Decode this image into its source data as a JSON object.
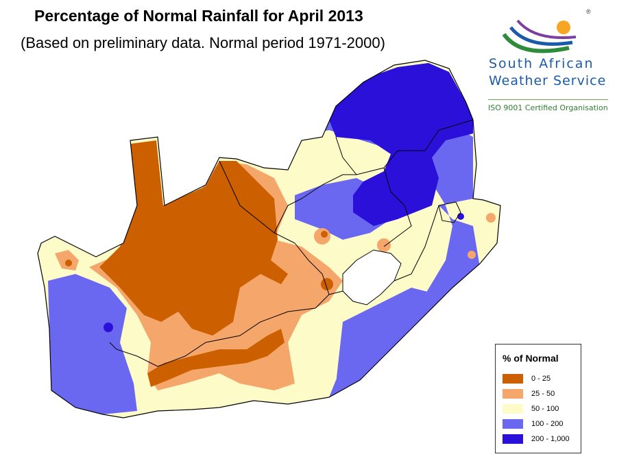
{
  "header": {
    "title": "Percentage of Normal Rainfall for April  2013",
    "subtitle": "(Based on preliminary data. Normal period 1971-2000)"
  },
  "logo": {
    "name_line1": "South  African",
    "name_line2": "Weather Service",
    "certification": "ISO 9001 Certified Organisation",
    "registered_mark": "®"
  },
  "legend": {
    "title": "% of Normal",
    "classes": [
      {
        "label": "0 - 25",
        "color": "#cc6000"
      },
      {
        "label": "25 - 50",
        "color": "#f5a66a"
      },
      {
        "label": "50 - 100",
        "color": "#fdfbc8"
      },
      {
        "label": "100 - 200",
        "color": "#6a68f0"
      },
      {
        "label": "200 - 1,000",
        "color": "#2a10d8"
      }
    ]
  },
  "colors": {
    "boundary": "#000000",
    "no_data": "#ffffff"
  }
}
